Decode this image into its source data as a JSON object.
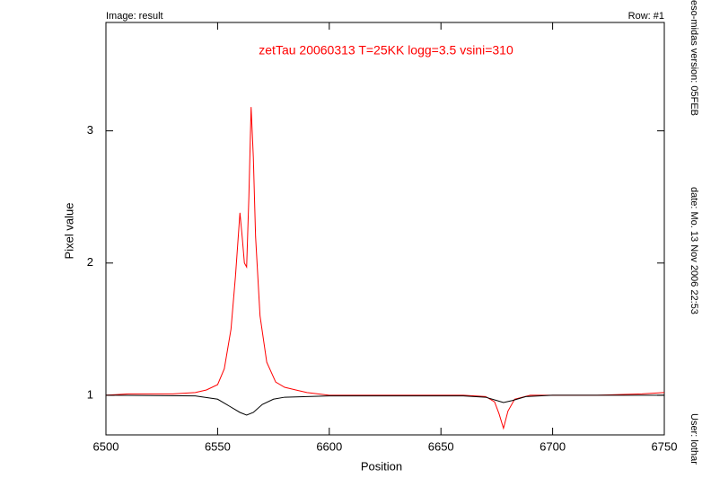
{
  "chart_data": {
    "type": "line",
    "title": "zetTau 20060313 T=25KK logg=3.5 vsini=310",
    "image_label": "Image: result",
    "row_label": "Row: #1",
    "version_label": "eso-midas version: 05FEB",
    "date_label": "date: Mo. 13 Nov 2006 22:53",
    "user_label": "User: lothar",
    "x_label": "Position",
    "y_label": "Pixel value",
    "xlim": [
      6500,
      6750
    ],
    "ylim": [
      0.7,
      3.82
    ],
    "xticks": [
      6500,
      6550,
      6600,
      6650,
      6700,
      6750
    ],
    "yticks": [
      1,
      2,
      3
    ],
    "series": [
      {
        "color": "#ff0000",
        "x": [
          6500,
          6510,
          6520,
          6530,
          6540,
          6545,
          6550,
          6553,
          6556,
          6558,
          6560,
          6561,
          6562,
          6563,
          6564,
          6565,
          6566,
          6567,
          6569,
          6572,
          6576,
          6580,
          6585,
          6590,
          6600,
          6620,
          6640,
          6660,
          6670,
          6674,
          6676,
          6678,
          6680,
          6683,
          6690,
          6700,
          6720,
          6740,
          6750
        ],
        "values": [
          1.0,
          1.01,
          1.01,
          1.01,
          1.02,
          1.04,
          1.08,
          1.2,
          1.5,
          1.9,
          2.38,
          2.2,
          2.0,
          1.97,
          2.5,
          3.18,
          2.8,
          2.2,
          1.6,
          1.25,
          1.1,
          1.06,
          1.04,
          1.02,
          1.0,
          1.0,
          1.0,
          1.0,
          0.99,
          0.95,
          0.86,
          0.75,
          0.88,
          0.97,
          1.0,
          1.0,
          1.0,
          1.01,
          1.02
        ]
      },
      {
        "color": "#000000",
        "x": [
          6500,
          6540,
          6550,
          6555,
          6560,
          6563,
          6566,
          6570,
          6575,
          6580,
          6600,
          6660,
          6670,
          6675,
          6678,
          6682,
          6688,
          6700,
          6750
        ],
        "values": [
          1.0,
          0.995,
          0.97,
          0.92,
          0.87,
          0.85,
          0.87,
          0.93,
          0.97,
          0.985,
          0.995,
          0.995,
          0.985,
          0.96,
          0.945,
          0.96,
          0.99,
          1.0,
          1.0
        ]
      }
    ]
  }
}
